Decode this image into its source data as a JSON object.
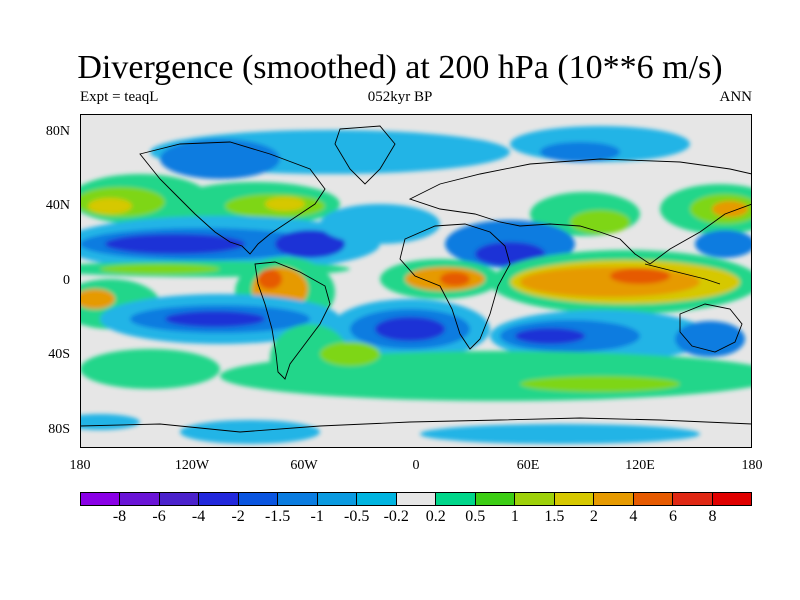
{
  "title": "Divergence (smoothed) at 200 hPa (10**6 m/s)",
  "subtitle_left": "Expt = teaqL",
  "subtitle_center": "052kyr BP",
  "subtitle_right": "ANN",
  "lat_ticks": [
    "80N",
    "40N",
    "0",
    "40S",
    "80S"
  ],
  "lon_ticks": [
    "180",
    "120W",
    "60W",
    "0",
    "60E",
    "120E",
    "180"
  ],
  "colorbar": {
    "labels": [
      "-8",
      "-6",
      "-4",
      "-2",
      "-1.5",
      "-1",
      "-0.5",
      "-0.2",
      "0.2",
      "0.5",
      "1",
      "1.5",
      "2",
      "4",
      "6",
      "8"
    ],
    "colors": [
      "#8a00e6",
      "#6a14d6",
      "#4b22cc",
      "#2228dc",
      "#0a55e0",
      "#0a7ce0",
      "#0a9ae0",
      "#00b4e0",
      "#e6e6e6",
      "#00d68a",
      "#3ccd14",
      "#9ed10a",
      "#d6c800",
      "#e69a00",
      "#e65a00",
      "#e02814",
      "#e00000"
    ]
  },
  "map_colors": {
    "ocean_neutral": "#e6e6e6",
    "neg_weak": "#22b4e6",
    "neg_mid": "#0a7ce0",
    "neg_strong": "#1e32d6",
    "pos_weak": "#22d68a",
    "pos_mid": "#7ed614",
    "pos_strong": "#d6c800",
    "pos_high": "#e69a00",
    "pos_peak": "#e65a00"
  }
}
